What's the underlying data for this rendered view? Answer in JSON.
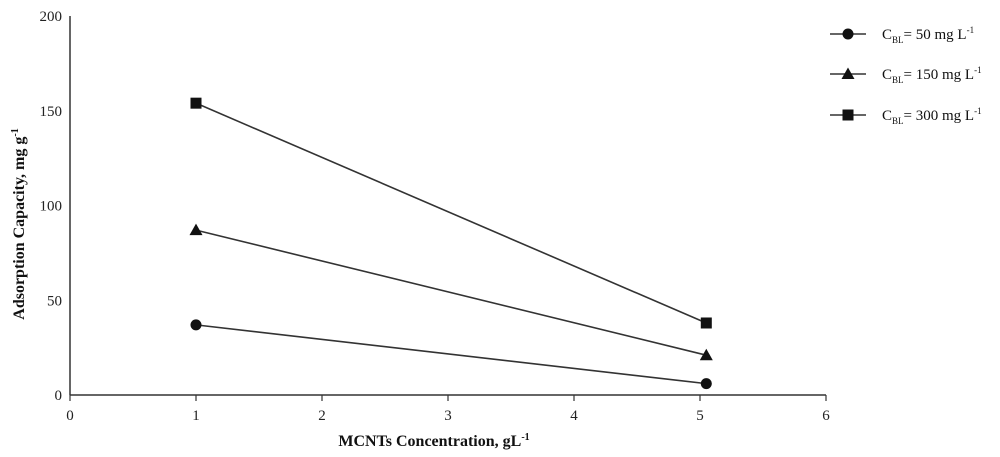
{
  "chart_data": {
    "type": "line",
    "xlabel": "MCNTs Concentration, gL",
    "xlabel_sup": "-1",
    "ylabel": "Adsorption Capacity, mg g",
    "ylabel_sup": "-1",
    "xlim": [
      0,
      6
    ],
    "ylim": [
      0,
      200
    ],
    "xticks": [
      0,
      1,
      2,
      3,
      4,
      5,
      6
    ],
    "yticks": [
      0,
      50,
      100,
      150,
      200
    ],
    "grid": false,
    "legend_position": "top-right",
    "x": [
      1,
      5.05
    ],
    "series": [
      {
        "name": "C BL = 50 mg L-1",
        "legend_main": "C",
        "legend_sub": "BL",
        "legend_rest": "= 50 mg L",
        "legend_sup": "-1",
        "marker": "circle",
        "values": [
          37,
          6
        ]
      },
      {
        "name": "C BL = 150 mg L-1",
        "legend_main": "C",
        "legend_sub": "BL",
        "legend_rest": "= 150 mg L",
        "legend_sup": "-1",
        "marker": "triangle",
        "values": [
          87,
          21
        ]
      },
      {
        "name": "C BL = 300 mg L-1",
        "legend_main": "C",
        "legend_sub": "BL",
        "legend_rest": "= 300 mg L",
        "legend_sup": "-1",
        "marker": "square",
        "values": [
          154,
          38
        ]
      }
    ],
    "colors": {
      "line": "#333333",
      "marker": "#111111",
      "axis": "#333333"
    }
  }
}
